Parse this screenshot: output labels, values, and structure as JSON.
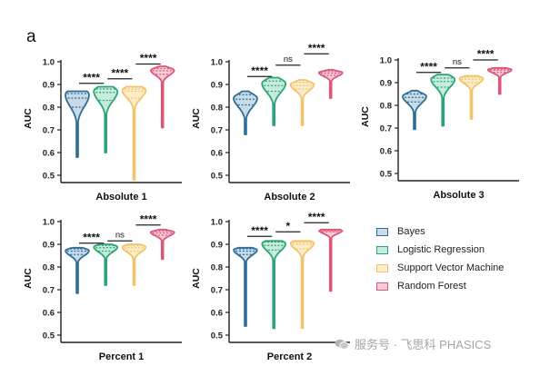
{
  "panel_letter": "a",
  "legend": [
    {
      "label": "Bayes",
      "color": "#2f6e96",
      "fill": "#c9dbe8"
    },
    {
      "label": "Logistic Regression",
      "color": "#2aa576",
      "fill": "#c8ecdc"
    },
    {
      "label": "Support Vector Machine",
      "color": "#f2c468",
      "fill": "#fbeccb"
    },
    {
      "label": "Random Forest",
      "color": "#de5676",
      "fill": "#f7cdd8"
    }
  ],
  "watermark": "服务号 · 飞思科 PHASICS",
  "chart_data": [
    {
      "type": "violin",
      "title": "Absolute 1",
      "ylabel": "AUC",
      "ylim": [
        0.5,
        1.0
      ],
      "yticks": [
        "0.5",
        "0.6",
        "0.7",
        "0.8",
        "0.9",
        "1.0"
      ],
      "series": [
        {
          "name": "Bayes",
          "min": 0.58,
          "max": 0.87,
          "q1": 0.8,
          "median": 0.84,
          "q3": 0.86,
          "mode": 0.855
        },
        {
          "name": "Logistic Regression",
          "min": 0.6,
          "max": 0.89,
          "q1": 0.83,
          "median": 0.865,
          "q3": 0.88,
          "mode": 0.87
        },
        {
          "name": "Support Vector Machine",
          "min": 0.48,
          "max": 0.89,
          "q1": 0.84,
          "median": 0.87,
          "q3": 0.88,
          "mode": 0.875
        },
        {
          "name": "Random Forest",
          "min": 0.71,
          "max": 0.98,
          "q1": 0.945,
          "median": 0.96,
          "q3": 0.97,
          "mode": 0.963
        }
      ],
      "significance": [
        {
          "pair": [
            0,
            1
          ],
          "label": "****",
          "y": 0.905
        },
        {
          "pair": [
            1,
            2
          ],
          "label": "****",
          "y": 0.925
        },
        {
          "pair": [
            2,
            3
          ],
          "label": "****",
          "y": 0.99
        }
      ]
    },
    {
      "type": "violin",
      "title": "Absolute 2",
      "ylabel": "AUC",
      "ylim": [
        0.5,
        1.0
      ],
      "yticks": [
        "0.5",
        "0.6",
        "0.7",
        "0.8",
        "0.9",
        "1.0"
      ],
      "series": [
        {
          "name": "Bayes",
          "min": 0.68,
          "max": 0.87,
          "q1": 0.81,
          "median": 0.835,
          "q3": 0.855,
          "mode": 0.84
        },
        {
          "name": "Logistic Regression",
          "min": 0.72,
          "max": 0.93,
          "q1": 0.87,
          "median": 0.895,
          "q3": 0.915,
          "mode": 0.905
        },
        {
          "name": "Support Vector Machine",
          "min": 0.72,
          "max": 0.92,
          "q1": 0.88,
          "median": 0.895,
          "q3": 0.91,
          "mode": 0.9
        },
        {
          "name": "Random Forest",
          "min": 0.84,
          "max": 0.965,
          "q1": 0.94,
          "median": 0.95,
          "q3": 0.958,
          "mode": 0.952
        }
      ],
      "significance": [
        {
          "pair": [
            0,
            1
          ],
          "label": "****",
          "y": 0.935
        },
        {
          "pair": [
            1,
            2
          ],
          "label": "ns",
          "y": 0.985
        },
        {
          "pair": [
            2,
            3
          ],
          "label": "****",
          "y": 1.035
        }
      ]
    },
    {
      "type": "violin",
      "title": "Absolute 3",
      "ylabel": "AUC",
      "ylim": [
        0.5,
        1.0
      ],
      "yticks": [
        "0.5",
        "0.6",
        "0.7",
        "0.8",
        "0.9",
        "1.0"
      ],
      "series": [
        {
          "name": "Bayes",
          "min": 0.695,
          "max": 0.865,
          "q1": 0.815,
          "median": 0.835,
          "q3": 0.85,
          "mode": 0.84
        },
        {
          "name": "Logistic Regression",
          "min": 0.71,
          "max": 0.935,
          "q1": 0.88,
          "median": 0.905,
          "q3": 0.92,
          "mode": 0.915
        },
        {
          "name": "Support Vector Machine",
          "min": 0.74,
          "max": 0.93,
          "q1": 0.9,
          "median": 0.915,
          "q3": 0.925,
          "mode": 0.918
        },
        {
          "name": "Random Forest",
          "min": 0.85,
          "max": 0.965,
          "q1": 0.945,
          "median": 0.955,
          "q3": 0.96,
          "mode": 0.957
        }
      ],
      "significance": [
        {
          "pair": [
            0,
            1
          ],
          "label": "****",
          "y": 0.945
        },
        {
          "pair": [
            1,
            2
          ],
          "label": "ns",
          "y": 0.965
        },
        {
          "pair": [
            2,
            3
          ],
          "label": "****",
          "y": 1.0
        }
      ]
    },
    {
      "type": "violin",
      "title": "Percent 1",
      "ylabel": "AUC",
      "ylim": [
        0.5,
        1.0
      ],
      "yticks": [
        "0.5",
        "0.6",
        "0.7",
        "0.8",
        "0.9",
        "1.0"
      ],
      "series": [
        {
          "name": "Bayes",
          "min": 0.685,
          "max": 0.885,
          "q1": 0.855,
          "median": 0.87,
          "q3": 0.88,
          "mode": 0.872
        },
        {
          "name": "Logistic Regression",
          "min": 0.72,
          "max": 0.9,
          "q1": 0.87,
          "median": 0.885,
          "q3": 0.895,
          "mode": 0.888
        },
        {
          "name": "Support Vector Machine",
          "min": 0.72,
          "max": 0.9,
          "q1": 0.87,
          "median": 0.885,
          "q3": 0.895,
          "mode": 0.888
        },
        {
          "name": "Random Forest",
          "min": 0.835,
          "max": 0.965,
          "q1": 0.94,
          "median": 0.95,
          "q3": 0.958,
          "mode": 0.953
        }
      ],
      "significance": [
        {
          "pair": [
            0,
            1
          ],
          "label": "****",
          "y": 0.905
        },
        {
          "pair": [
            1,
            2
          ],
          "label": "ns",
          "y": 0.915
        },
        {
          "pair": [
            2,
            3
          ],
          "label": "****",
          "y": 0.985
        }
      ]
    },
    {
      "type": "violin",
      "title": "Percent 2",
      "ylabel": "AUC",
      "ylim": [
        0.5,
        1.0
      ],
      "yticks": [
        "0.5",
        "0.6",
        "0.7",
        "0.8",
        "0.9",
        "1.0"
      ],
      "series": [
        {
          "name": "Bayes",
          "min": 0.54,
          "max": 0.885,
          "q1": 0.855,
          "median": 0.87,
          "q3": 0.88,
          "mode": 0.875
        },
        {
          "name": "Logistic Regression",
          "min": 0.53,
          "max": 0.915,
          "q1": 0.875,
          "median": 0.895,
          "q3": 0.91,
          "mode": 0.903
        },
        {
          "name": "Support Vector Machine",
          "min": 0.53,
          "max": 0.915,
          "q1": 0.88,
          "median": 0.9,
          "q3": 0.91,
          "mode": 0.905
        },
        {
          "name": "Random Forest",
          "min": 0.695,
          "max": 0.965,
          "q1": 0.955,
          "median": 0.96,
          "q3": 0.964,
          "mode": 0.961
        }
      ],
      "significance": [
        {
          "pair": [
            0,
            1
          ],
          "label": "****",
          "y": 0.935
        },
        {
          "pair": [
            1,
            2
          ],
          "label": "*",
          "y": 0.955
        },
        {
          "pair": [
            2,
            3
          ],
          "label": "****",
          "y": 0.995
        }
      ]
    }
  ]
}
